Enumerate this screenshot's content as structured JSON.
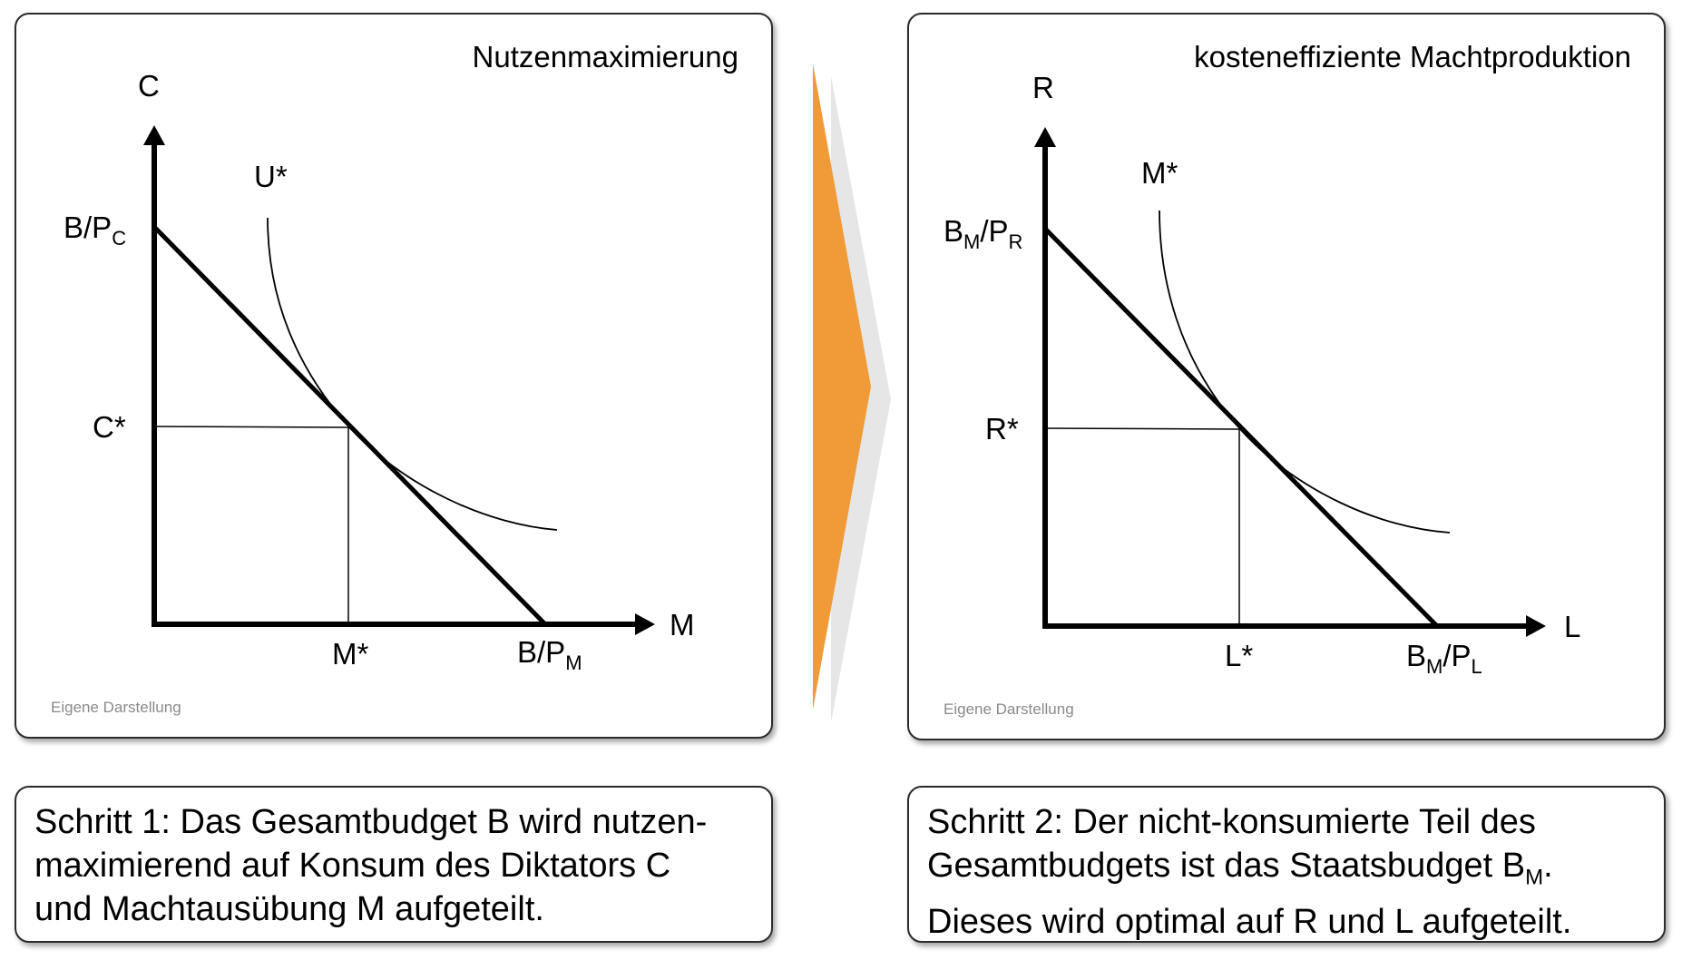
{
  "left_panel": {
    "title": "Nutzenmaximierung",
    "credit": "Eigene Darstellung",
    "y_axis_label": "C",
    "x_axis_label": "M",
    "curve_label": "U*",
    "y_intercept": {
      "main": "B/P",
      "sub": "C"
    },
    "x_intercept": {
      "main": "B/P",
      "sub": "M"
    },
    "y_optimum": "C*",
    "x_optimum": "M*"
  },
  "right_panel": {
    "title": "kosteneffiziente Machtproduktion",
    "credit": "Eigene Darstellung",
    "y_axis_label": "R",
    "x_axis_label": "L",
    "curve_label": "M*",
    "y_intercept": {
      "b": "B",
      "b_sub": "M",
      "p": "/P",
      "p_sub": "R"
    },
    "x_intercept": {
      "b": "B",
      "b_sub": "M",
      "p": "/P",
      "p_sub": "L"
    },
    "y_optimum": "R*",
    "x_optimum": "L*"
  },
  "caption_left": {
    "line1": "Schritt 1: Das Gesamtbudget B wird nutzen-",
    "line2": "maximierend auf Konsum des Diktators C",
    "line3": "und Machtausübung M aufgeteilt."
  },
  "caption_right": {
    "line1": "Schritt 2: Der nicht-konsumierte Teil des",
    "line2_main": "Gesamtbudgets ist das Staatsbudget B",
    "line2_sub": "M",
    "line2_end": ".",
    "line3": "Dieses wird optimal auf R und L aufgeteilt."
  },
  "colors": {
    "arrow": "#f09a38",
    "arrow_shadow": "#e6e6e6",
    "border": "#2b2b2b",
    "credit_text": "#8a8a8a"
  }
}
